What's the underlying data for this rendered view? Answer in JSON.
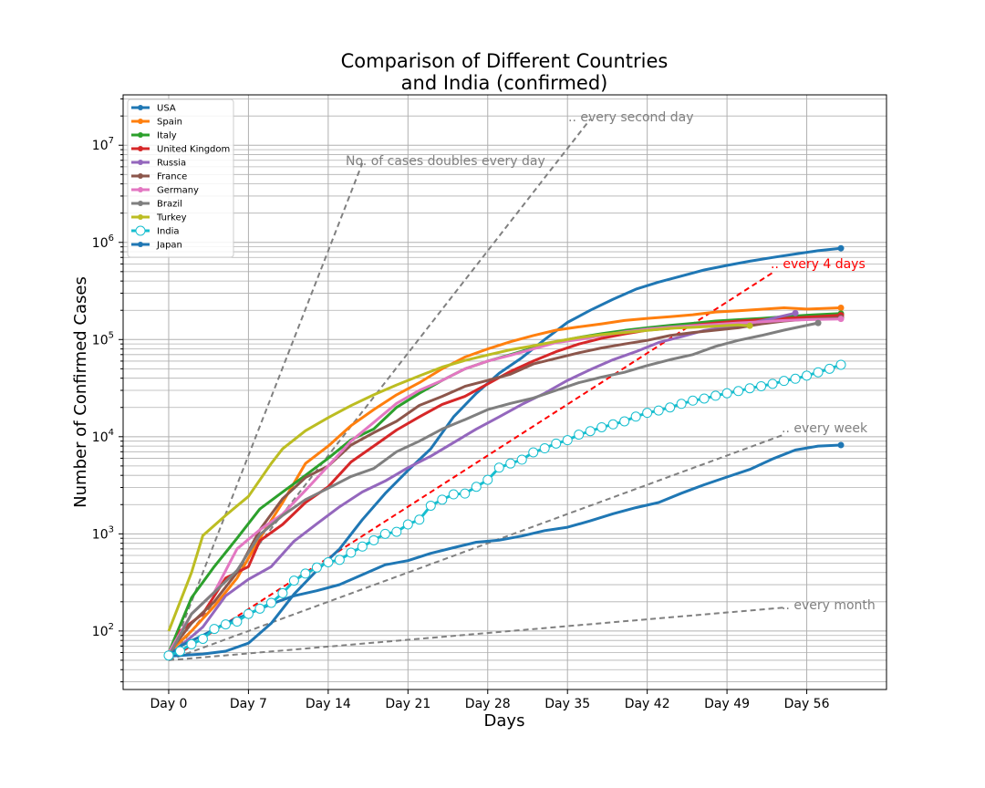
{
  "chart_data": {
    "type": "line",
    "title_line1": "Comparison of Different Countries",
    "title_line2": "and India (confirmed)",
    "xlabel": "Days",
    "ylabel": "Number of Confirmed Cases",
    "yscale": "log",
    "xlim": [
      -4,
      63
    ],
    "ylim": [
      25,
      33000000
    ],
    "grid": true,
    "legend_position": "upper-left",
    "x_ticks": [
      {
        "value": 0,
        "label": "Day 0"
      },
      {
        "value": 7,
        "label": "Day 7"
      },
      {
        "value": 14,
        "label": "Day 14"
      },
      {
        "value": 21,
        "label": "Day 21"
      },
      {
        "value": 28,
        "label": "Day 28"
      },
      {
        "value": 35,
        "label": "Day 35"
      },
      {
        "value": 42,
        "label": "Day 42"
      },
      {
        "value": 49,
        "label": "Day 49"
      },
      {
        "value": 56,
        "label": "Day 56"
      }
    ],
    "y_ticks": [
      {
        "value": 100,
        "label": "10",
        "exp": "2"
      },
      {
        "value": 1000,
        "label": "10",
        "exp": "3"
      },
      {
        "value": 10000,
        "label": "10",
        "exp": "4"
      },
      {
        "value": 100000,
        "label": "10",
        "exp": "5"
      },
      {
        "value": 1000000,
        "label": "10",
        "exp": "6"
      },
      {
        "value": 10000000,
        "label": "10",
        "exp": "7"
      }
    ],
    "series": [
      {
        "name": "USA",
        "color": "#1f77b4",
        "x": [
          0,
          3,
          5,
          7,
          9,
          11,
          13,
          15,
          17,
          19,
          21,
          23,
          25,
          27,
          29,
          31,
          33,
          35,
          37,
          39,
          41,
          43,
          45,
          47,
          49,
          51,
          53,
          55,
          57,
          59
        ],
        "y": [
          55,
          58,
          62,
          75,
          120,
          240,
          420,
          700,
          1400,
          2600,
          4500,
          7500,
          16000,
          28000,
          45000,
          65000,
          100000,
          150000,
          200000,
          260000,
          330000,
          390000,
          450000,
          520000,
          580000,
          640000,
          700000,
          760000,
          820000,
          870000
        ]
      },
      {
        "name": "Spain",
        "color": "#ff7f0e",
        "x": [
          0,
          2,
          4,
          6,
          8,
          10,
          12,
          14,
          16,
          18,
          20,
          22,
          24,
          26,
          28,
          30,
          32,
          34,
          36,
          38,
          40,
          42,
          44,
          46,
          48,
          50,
          52,
          54,
          56,
          59
        ],
        "y": [
          60,
          100,
          180,
          350,
          900,
          2100,
          5300,
          8000,
          13000,
          19000,
          27000,
          36000,
          50000,
          66000,
          80000,
          95000,
          110000,
          125000,
          135000,
          145000,
          157000,
          165000,
          172000,
          180000,
          192000,
          198000,
          205000,
          212000,
          206000,
          212000
        ]
      },
      {
        "name": "Italy",
        "color": "#2ca02c",
        "x": [
          0,
          2,
          4,
          6,
          8,
          10,
          12,
          14,
          16,
          18,
          20,
          22,
          24,
          26,
          28,
          30,
          32,
          34,
          36,
          38,
          40,
          42,
          44,
          46,
          48,
          50,
          52,
          54,
          56,
          59
        ],
        "y": [
          60,
          220,
          460,
          900,
          1800,
          2700,
          4000,
          6000,
          9300,
          12000,
          20000,
          28000,
          38000,
          50000,
          60000,
          70000,
          82000,
          95000,
          105000,
          115000,
          124000,
          132000,
          140000,
          147000,
          155000,
          160000,
          165000,
          172000,
          178000,
          185000
        ]
      },
      {
        "name": "United Kingdom",
        "color": "#d62728",
        "x": [
          0,
          1,
          3,
          5,
          7,
          8,
          10,
          12,
          14,
          16,
          18,
          20,
          22,
          24,
          26,
          28,
          30,
          32,
          34,
          36,
          38,
          40,
          42,
          44,
          46,
          48,
          50,
          52,
          54,
          56,
          59
        ],
        "y": [
          50,
          100,
          150,
          350,
          460,
          850,
          1250,
          2100,
          3050,
          5500,
          8000,
          11700,
          16000,
          21500,
          26000,
          35000,
          47000,
          60000,
          75000,
          90000,
          103000,
          114000,
          125000,
          130000,
          140000,
          148000,
          155000,
          160000,
          165000,
          170000,
          178000
        ]
      },
      {
        "name": "Russia",
        "color": "#9467bd",
        "x": [
          0,
          3,
          5,
          7,
          9,
          11,
          13,
          15,
          17,
          19,
          21,
          23,
          25,
          27,
          29,
          31,
          33,
          35,
          37,
          39,
          41,
          43,
          45,
          47,
          49,
          51,
          53,
          55
        ],
        "y": [
          55,
          110,
          230,
          340,
          460,
          840,
          1270,
          1900,
          2700,
          3500,
          4800,
          6300,
          8700,
          12000,
          16000,
          21500,
          28000,
          38000,
          49000,
          62000,
          75000,
          93000,
          107000,
          124000,
          135000,
          147000,
          165000,
          187000
        ]
      },
      {
        "name": "France",
        "color": "#8c564b",
        "x": [
          0,
          2,
          4,
          6,
          8,
          10,
          12,
          14,
          16,
          18,
          20,
          22,
          24,
          26,
          28,
          30,
          32,
          34,
          36,
          38,
          40,
          42,
          44,
          46,
          48,
          50,
          52,
          54,
          56,
          59
        ],
        "y": [
          60,
          120,
          200,
          400,
          1100,
          2300,
          3800,
          5000,
          8200,
          11000,
          14400,
          21000,
          26000,
          33000,
          38000,
          44000,
          56000,
          64000,
          73000,
          82000,
          90000,
          98000,
          110000,
          118000,
          125000,
          132000,
          145000,
          155000,
          162000,
          168000
        ]
      },
      {
        "name": "Germany",
        "color": "#e377c2",
        "x": [
          0,
          2,
          4,
          6,
          8,
          10,
          12,
          14,
          16,
          18,
          20,
          22,
          24,
          26,
          28,
          30,
          32,
          34,
          36,
          38,
          40,
          42,
          44,
          46,
          48,
          50,
          52,
          54,
          56,
          59
        ],
        "y": [
          60,
          150,
          250,
          700,
          1100,
          1600,
          2800,
          5000,
          9000,
          14000,
          22000,
          30000,
          38000,
          50000,
          60000,
          69000,
          80000,
          93000,
          100000,
          110000,
          120000,
          128000,
          134000,
          139000,
          143000,
          148000,
          152000,
          157000,
          160000,
          163000
        ]
      },
      {
        "name": "Brazil",
        "color": "#7f7f7f",
        "x": [
          0,
          2,
          4,
          6,
          8,
          10,
          12,
          14,
          16,
          18,
          20,
          22,
          24,
          26,
          28,
          30,
          32,
          34,
          36,
          38,
          40,
          42,
          44,
          46,
          48,
          50,
          52,
          54,
          57
        ],
        "y": [
          55,
          150,
          250,
          420,
          980,
          1550,
          2250,
          2950,
          3900,
          4700,
          7000,
          9000,
          12000,
          15000,
          19000,
          22000,
          25000,
          30000,
          36000,
          41000,
          46000,
          54000,
          62000,
          70000,
          85000,
          98000,
          110000,
          125000,
          148000
        ]
      },
      {
        "name": "Turkey",
        "color": "#bcbd22",
        "x": [
          0,
          2,
          3,
          5,
          7,
          9,
          10,
          12,
          14,
          16,
          18,
          20,
          22,
          24,
          26,
          28,
          30,
          32,
          34,
          36,
          38,
          40,
          42,
          44,
          46,
          48,
          50,
          51
        ],
        "y": [
          100,
          400,
          960,
          1550,
          2430,
          5300,
          7500,
          11500,
          15700,
          20900,
          27000,
          34100,
          42300,
          52100,
          61000,
          69400,
          78500,
          86300,
          95600,
          104900,
          112300,
          118000,
          124400,
          130500,
          133700,
          137500,
          141500,
          138600
        ]
      }
    ],
    "india": {
      "name": "India",
      "color": "#17becf",
      "x": [
        0,
        1,
        2,
        3,
        4,
        5,
        6,
        7,
        8,
        9,
        10,
        11,
        12,
        13,
        14,
        15,
        16,
        17,
        18,
        19,
        20,
        21,
        22,
        23,
        24,
        25,
        26,
        27,
        28,
        29,
        30,
        31,
        32,
        33,
        34,
        35,
        36,
        37,
        38,
        39,
        40,
        41,
        42,
        43,
        44,
        45,
        46,
        47,
        48,
        49,
        50,
        51,
        52,
        53,
        54,
        55,
        56,
        57,
        58,
        59
      ],
      "y": [
        56,
        62,
        73,
        83,
        105,
        117,
        125,
        150,
        170,
        195,
        245,
        330,
        390,
        450,
        510,
        540,
        640,
        740,
        860,
        1000,
        1050,
        1250,
        1400,
        1950,
        2250,
        2550,
        2600,
        3050,
        3600,
        4800,
        5300,
        5800,
        6900,
        7600,
        8500,
        9200,
        10500,
        11400,
        12500,
        13400,
        14400,
        16100,
        17600,
        18600,
        20000,
        21800,
        23500,
        24700,
        26400,
        28000,
        29500,
        31500,
        33100,
        35000,
        37500,
        39500,
        42500,
        46000,
        50000,
        55000
      ]
    },
    "japan": {
      "name": "Japan",
      "color": "#1f77b4",
      "x": [
        0,
        1,
        3,
        5,
        7,
        9,
        11,
        13,
        15,
        17,
        19,
        21,
        23,
        25,
        27,
        29,
        31,
        33,
        35,
        37,
        39,
        41,
        43,
        45,
        47,
        49,
        51,
        53,
        55,
        57,
        59
      ],
      "y": [
        55,
        70,
        90,
        120,
        150,
        190,
        230,
        260,
        300,
        380,
        480,
        530,
        630,
        720,
        820,
        860,
        950,
        1080,
        1170,
        1360,
        1610,
        1860,
        2100,
        2620,
        3200,
        3850,
        4600,
        5900,
        7300,
        8000,
        8200
      ]
    },
    "reference_lines": [
      {
        "label": "No. of cases doubles every day",
        "doubling_days": 1,
        "x_end": 17,
        "color": "#808080"
      },
      {
        "label": ".. every second day",
        "doubling_days": 2,
        "x_end": 37,
        "color": "#808080"
      },
      {
        "label": ".. every 4 days",
        "doubling_days": 4,
        "x_end": 53,
        "color": "#ff0000"
      },
      {
        "label": ".. every week",
        "doubling_days": 7,
        "x_end": 54,
        "color": "#808080"
      },
      {
        "label": ".. every month",
        "doubling_days": 30,
        "x_end": 54,
        "color": "#808080"
      }
    ]
  }
}
